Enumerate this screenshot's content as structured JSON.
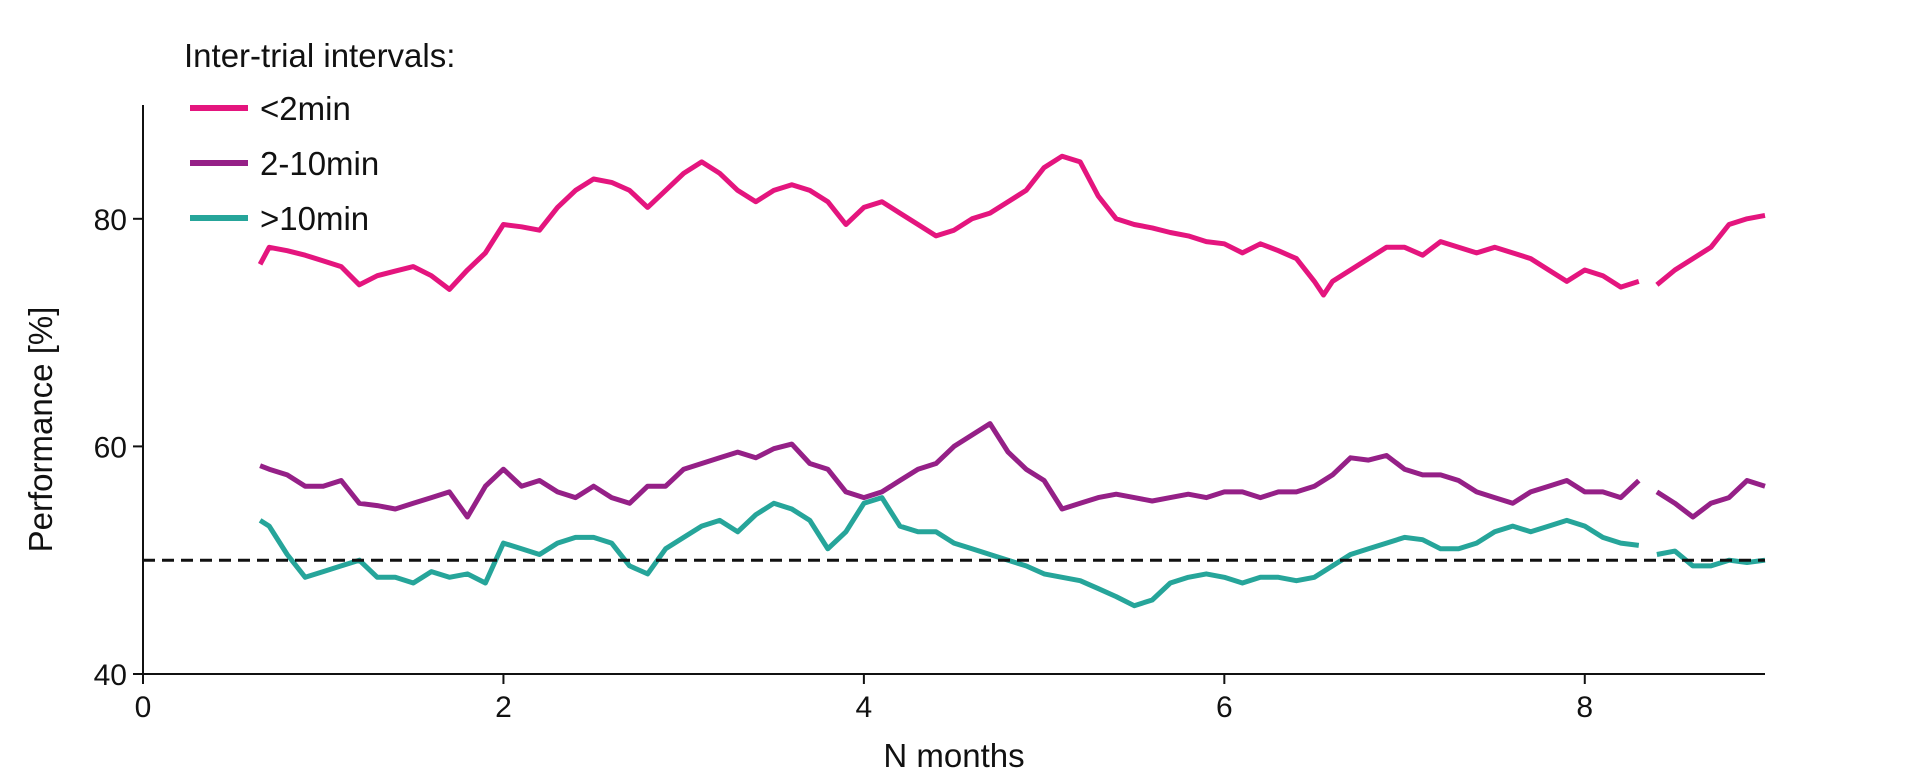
{
  "chart_data": {
    "type": "line",
    "xlabel": "N months",
    "ylabel": "Performance [%]",
    "xlim": [
      0,
      9
    ],
    "ylim": [
      40,
      90
    ],
    "xticks": [
      "0",
      "2",
      "4",
      "6",
      "8"
    ],
    "yticks": [
      "40",
      "60",
      "80"
    ],
    "grid": false,
    "reference_line": {
      "y": 50,
      "style": "dashed"
    },
    "legend": {
      "title": "Inter-trial intervals:",
      "placement": "top-left"
    },
    "series": [
      {
        "name": "<2min",
        "color": "#e4157e",
        "segments": [
          [
            [
              0.65,
              76
            ],
            [
              0.7,
              77.5
            ],
            [
              0.8,
              77.2
            ],
            [
              0.9,
              76.8
            ],
            [
              1.0,
              76.3
            ],
            [
              1.1,
              75.8
            ],
            [
              1.2,
              74.2
            ],
            [
              1.3,
              75
            ],
            [
              1.4,
              75.4
            ],
            [
              1.5,
              75.8
            ],
            [
              1.6,
              75
            ],
            [
              1.7,
              73.8
            ],
            [
              1.8,
              75.5
            ],
            [
              1.9,
              77
            ],
            [
              2.0,
              79.5
            ],
            [
              2.1,
              79.3
            ],
            [
              2.2,
              79
            ],
            [
              2.3,
              81
            ],
            [
              2.4,
              82.5
            ],
            [
              2.5,
              83.5
            ],
            [
              2.6,
              83.2
            ],
            [
              2.7,
              82.5
            ],
            [
              2.8,
              81
            ],
            [
              2.9,
              82.5
            ],
            [
              3.0,
              84
            ],
            [
              3.1,
              85
            ],
            [
              3.2,
              84
            ],
            [
              3.3,
              82.5
            ],
            [
              3.4,
              81.5
            ],
            [
              3.5,
              82.5
            ],
            [
              3.6,
              83
            ],
            [
              3.7,
              82.5
            ],
            [
              3.8,
              81.5
            ],
            [
              3.9,
              79.5
            ],
            [
              4.0,
              81
            ],
            [
              4.1,
              81.5
            ],
            [
              4.2,
              80.5
            ],
            [
              4.3,
              79.5
            ],
            [
              4.4,
              78.5
            ],
            [
              4.5,
              79
            ],
            [
              4.6,
              80
            ],
            [
              4.7,
              80.5
            ],
            [
              4.8,
              81.5
            ],
            [
              4.9,
              82.5
            ],
            [
              5.0,
              84.5
            ],
            [
              5.1,
              85.5
            ],
            [
              5.2,
              85
            ],
            [
              5.3,
              82
            ],
            [
              5.4,
              80
            ],
            [
              5.5,
              79.5
            ],
            [
              5.6,
              79.2
            ],
            [
              5.7,
              78.8
            ],
            [
              5.8,
              78.5
            ],
            [
              5.9,
              78
            ],
            [
              6.0,
              77.8
            ],
            [
              6.1,
              77
            ],
            [
              6.2,
              77.8
            ],
            [
              6.3,
              77.2
            ],
            [
              6.4,
              76.5
            ],
            [
              6.5,
              74.5
            ],
            [
              6.55,
              73.3
            ],
            [
              6.6,
              74.5
            ],
            [
              6.7,
              75.5
            ],
            [
              6.8,
              76.5
            ],
            [
              6.9,
              77.5
            ],
            [
              7.0,
              77.5
            ],
            [
              7.1,
              76.8
            ],
            [
              7.2,
              78
            ],
            [
              7.3,
              77.5
            ],
            [
              7.4,
              77
            ],
            [
              7.5,
              77.5
            ],
            [
              7.6,
              77
            ],
            [
              7.7,
              76.5
            ],
            [
              7.8,
              75.5
            ],
            [
              7.9,
              74.5
            ],
            [
              8.0,
              75.5
            ],
            [
              8.1,
              75
            ],
            [
              8.2,
              74
            ],
            [
              8.3,
              74.5
            ]
          ],
          [
            [
              8.4,
              74.2
            ],
            [
              8.5,
              75.5
            ],
            [
              8.6,
              76.5
            ],
            [
              8.7,
              77.5
            ],
            [
              8.8,
              79.5
            ],
            [
              8.9,
              80
            ],
            [
              9.0,
              80.3
            ]
          ]
        ]
      },
      {
        "name": "2-10min",
        "color": "#952087",
        "segments": [
          [
            [
              0.65,
              58.3
            ],
            [
              0.7,
              58
            ],
            [
              0.8,
              57.5
            ],
            [
              0.9,
              56.5
            ],
            [
              1.0,
              56.5
            ],
            [
              1.1,
              57
            ],
            [
              1.2,
              55
            ],
            [
              1.3,
              54.8
            ],
            [
              1.4,
              54.5
            ],
            [
              1.5,
              55
            ],
            [
              1.6,
              55.5
            ],
            [
              1.7,
              56
            ],
            [
              1.8,
              53.8
            ],
            [
              1.9,
              56.5
            ],
            [
              2.0,
              58
            ],
            [
              2.1,
              56.5
            ],
            [
              2.2,
              57
            ],
            [
              2.3,
              56
            ],
            [
              2.4,
              55.5
            ],
            [
              2.5,
              56.5
            ],
            [
              2.6,
              55.5
            ],
            [
              2.7,
              55
            ],
            [
              2.8,
              56.5
            ],
            [
              2.9,
              56.5
            ],
            [
              3.0,
              58
            ],
            [
              3.1,
              58.5
            ],
            [
              3.2,
              59
            ],
            [
              3.3,
              59.5
            ],
            [
              3.4,
              59
            ],
            [
              3.5,
              59.8
            ],
            [
              3.6,
              60.2
            ],
            [
              3.7,
              58.5
            ],
            [
              3.8,
              58
            ],
            [
              3.9,
              56
            ],
            [
              4.0,
              55.5
            ],
            [
              4.1,
              56
            ],
            [
              4.2,
              57
            ],
            [
              4.3,
              58
            ],
            [
              4.4,
              58.5
            ],
            [
              4.5,
              60
            ],
            [
              4.6,
              61
            ],
            [
              4.7,
              62
            ],
            [
              4.8,
              59.5
            ],
            [
              4.9,
              58
            ],
            [
              5.0,
              57
            ],
            [
              5.1,
              54.5
            ],
            [
              5.2,
              55
            ],
            [
              5.3,
              55.5
            ],
            [
              5.4,
              55.8
            ],
            [
              5.5,
              55.5
            ],
            [
              5.6,
              55.2
            ],
            [
              5.7,
              55.5
            ],
            [
              5.8,
              55.8
            ],
            [
              5.9,
              55.5
            ],
            [
              6.0,
              56
            ],
            [
              6.1,
              56
            ],
            [
              6.2,
              55.5
            ],
            [
              6.3,
              56
            ],
            [
              6.4,
              56
            ],
            [
              6.5,
              56.5
            ],
            [
              6.6,
              57.5
            ],
            [
              6.7,
              59
            ],
            [
              6.8,
              58.8
            ],
            [
              6.9,
              59.2
            ],
            [
              7.0,
              58
            ],
            [
              7.1,
              57.5
            ],
            [
              7.2,
              57.5
            ],
            [
              7.3,
              57
            ],
            [
              7.4,
              56
            ],
            [
              7.5,
              55.5
            ],
            [
              7.6,
              55
            ],
            [
              7.7,
              56
            ],
            [
              7.8,
              56.5
            ],
            [
              7.9,
              57
            ],
            [
              8.0,
              56
            ],
            [
              8.1,
              56
            ],
            [
              8.2,
              55.5
            ],
            [
              8.3,
              57
            ]
          ],
          [
            [
              8.4,
              56
            ],
            [
              8.5,
              55
            ],
            [
              8.6,
              53.8
            ],
            [
              8.7,
              55
            ],
            [
              8.8,
              55.5
            ],
            [
              8.9,
              57
            ],
            [
              9.0,
              56.5
            ]
          ]
        ]
      },
      {
        "name": ">10min",
        "color": "#26a59a",
        "segments": [
          [
            [
              0.65,
              53.5
            ],
            [
              0.7,
              53
            ],
            [
              0.8,
              50.5
            ],
            [
              0.9,
              48.5
            ],
            [
              1.0,
              49
            ],
            [
              1.1,
              49.5
            ],
            [
              1.2,
              50
            ],
            [
              1.3,
              48.5
            ],
            [
              1.4,
              48.5
            ],
            [
              1.5,
              48
            ],
            [
              1.6,
              49
            ],
            [
              1.7,
              48.5
            ],
            [
              1.8,
              48.8
            ],
            [
              1.9,
              48
            ],
            [
              2.0,
              51.5
            ],
            [
              2.1,
              51
            ],
            [
              2.2,
              50.5
            ],
            [
              2.3,
              51.5
            ],
            [
              2.4,
              52
            ],
            [
              2.5,
              52
            ],
            [
              2.6,
              51.5
            ],
            [
              2.7,
              49.5
            ],
            [
              2.8,
              48.8
            ],
            [
              2.9,
              51
            ],
            [
              3.0,
              52
            ],
            [
              3.1,
              53
            ],
            [
              3.2,
              53.5
            ],
            [
              3.3,
              52.5
            ],
            [
              3.4,
              54
            ],
            [
              3.5,
              55
            ],
            [
              3.6,
              54.5
            ],
            [
              3.7,
              53.5
            ],
            [
              3.8,
              51
            ],
            [
              3.9,
              52.5
            ],
            [
              4.0,
              55
            ],
            [
              4.1,
              55.5
            ],
            [
              4.2,
              53
            ],
            [
              4.3,
              52.5
            ],
            [
              4.4,
              52.5
            ],
            [
              4.5,
              51.5
            ],
            [
              4.6,
              51
            ],
            [
              4.7,
              50.5
            ],
            [
              4.8,
              50
            ],
            [
              4.9,
              49.5
            ],
            [
              5.0,
              48.8
            ],
            [
              5.1,
              48.5
            ],
            [
              5.2,
              48.2
            ],
            [
              5.3,
              47.5
            ],
            [
              5.4,
              46.8
            ],
            [
              5.5,
              46
            ],
            [
              5.6,
              46.5
            ],
            [
              5.7,
              48
            ],
            [
              5.8,
              48.5
            ],
            [
              5.9,
              48.8
            ],
            [
              6.0,
              48.5
            ],
            [
              6.1,
              48
            ],
            [
              6.2,
              48.5
            ],
            [
              6.3,
              48.5
            ],
            [
              6.4,
              48.2
            ],
            [
              6.5,
              48.5
            ],
            [
              6.6,
              49.5
            ],
            [
              6.7,
              50.5
            ],
            [
              6.8,
              51
            ],
            [
              6.9,
              51.5
            ],
            [
              7.0,
              52
            ],
            [
              7.1,
              51.8
            ],
            [
              7.2,
              51
            ],
            [
              7.3,
              51
            ],
            [
              7.4,
              51.5
            ],
            [
              7.5,
              52.5
            ],
            [
              7.6,
              53
            ],
            [
              7.7,
              52.5
            ],
            [
              7.8,
              53
            ],
            [
              7.9,
              53.5
            ],
            [
              8.0,
              53
            ],
            [
              8.1,
              52
            ],
            [
              8.2,
              51.5
            ],
            [
              8.3,
              51.3
            ]
          ],
          [
            [
              8.4,
              50.5
            ],
            [
              8.5,
              50.8
            ],
            [
              8.6,
              49.5
            ],
            [
              8.7,
              49.5
            ],
            [
              8.8,
              50
            ],
            [
              8.9,
              49.8
            ],
            [
              9.0,
              50
            ]
          ]
        ]
      }
    ]
  }
}
